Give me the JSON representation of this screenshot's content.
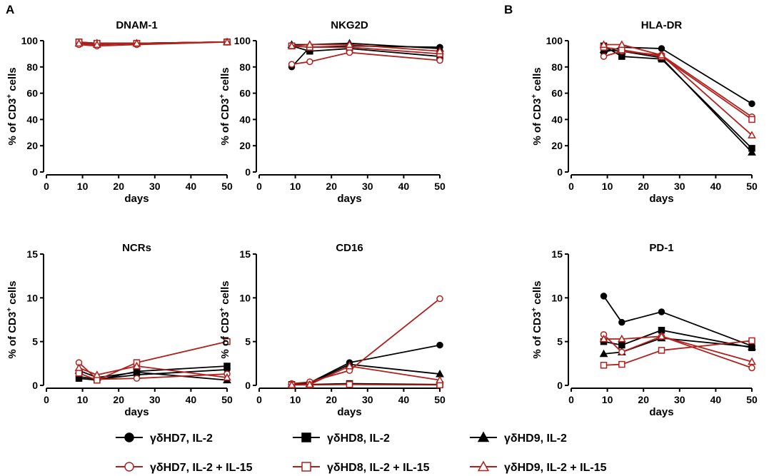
{
  "panel_letters": [
    "A",
    "B"
  ],
  "axes": {
    "xlabel": "days",
    "ylabel_prefix": "% of CD3",
    "ylabel_sup": "+",
    "ylabel_suffix": " cells",
    "x_ticks": [
      0,
      10,
      20,
      30,
      40,
      50
    ]
  },
  "colors": {
    "black": "#000000",
    "red": "#b0201c"
  },
  "legend": [
    {
      "label": "γδHD7, IL-2",
      "color": "#000000",
      "marker": "circle",
      "filled": true
    },
    {
      "label": "γδHD8, IL-2",
      "color": "#000000",
      "marker": "square",
      "filled": true
    },
    {
      "label": "γδHD9, IL-2",
      "color": "#000000",
      "marker": "triangle",
      "filled": true
    },
    {
      "label": "γδHD7, IL-2 + IL-15",
      "color": "#b0201c",
      "marker": "circle",
      "filled": false
    },
    {
      "label": "γδHD8, IL-2 + IL-15",
      "color": "#b0201c",
      "marker": "square",
      "filled": false
    },
    {
      "label": "γδHD9, IL-2 + IL-15",
      "color": "#b0201c",
      "marker": "triangle",
      "filled": false
    }
  ],
  "chart_data": [
    {
      "type": "line",
      "title": "DNAM-1",
      "xlabel": "days",
      "ylabel": "% of CD3+ cells",
      "xlim": [
        0,
        50
      ],
      "ylim": [
        0,
        100
      ],
      "yticks": [
        0,
        20,
        40,
        60,
        80,
        100
      ],
      "x": [
        9,
        14,
        25,
        50
      ],
      "series": [
        {
          "name": "γδHD7, IL-2",
          "values": [
            98,
            97,
            98,
            99
          ]
        },
        {
          "name": "γδHD8, IL-2",
          "values": [
            99,
            98,
            98,
            99
          ]
        },
        {
          "name": "γδHD9, IL-2",
          "values": [
            98,
            98,
            98,
            99
          ]
        },
        {
          "name": "γδHD7, IL-2 + IL-15",
          "values": [
            97,
            96,
            97,
            99
          ]
        },
        {
          "name": "γδHD8, IL-2 + IL-15",
          "values": [
            99,
            98,
            98,
            99
          ]
        },
        {
          "name": "γδHD9, IL-2 + IL-15",
          "values": [
            98,
            97,
            98,
            99
          ]
        }
      ]
    },
    {
      "type": "line",
      "title": "NKG2D",
      "xlabel": "days",
      "ylabel": "% of CD3+ cells",
      "xlim": [
        0,
        50
      ],
      "ylim": [
        0,
        100
      ],
      "yticks": [
        0,
        20,
        40,
        60,
        80,
        100
      ],
      "x": [
        9,
        14,
        25,
        50
      ],
      "series": [
        {
          "name": "γδHD7, IL-2",
          "values": [
            80,
            95,
            96,
            95
          ]
        },
        {
          "name": "γδHD8, IL-2",
          "values": [
            96,
            92,
            94,
            88
          ]
        },
        {
          "name": "γδHD9, IL-2",
          "values": [
            97,
            97,
            98,
            94
          ]
        },
        {
          "name": "γδHD7, IL-2 + IL-15",
          "values": [
            82,
            84,
            91,
            85
          ]
        },
        {
          "name": "γδHD8, IL-2 + IL-15",
          "values": [
            96,
            95,
            95,
            90
          ]
        },
        {
          "name": "γδHD9, IL-2 + IL-15",
          "values": [
            96,
            97,
            97,
            92
          ]
        }
      ]
    },
    {
      "type": "line",
      "title": "HLA-DR",
      "xlabel": "days",
      "ylabel": "% of CD3+ cells",
      "xlim": [
        0,
        50
      ],
      "ylim": [
        0,
        100
      ],
      "yticks": [
        0,
        20,
        40,
        60,
        80,
        100
      ],
      "x": [
        9,
        14,
        25,
        50
      ],
      "series": [
        {
          "name": "γδHD7, IL-2",
          "values": [
            91,
            95,
            94,
            52
          ]
        },
        {
          "name": "γδHD8, IL-2",
          "values": [
            96,
            88,
            86,
            18
          ]
        },
        {
          "name": "γδHD9, IL-2",
          "values": [
            93,
            92,
            87,
            15
          ]
        },
        {
          "name": "γδHD7, IL-2 + IL-15",
          "values": [
            88,
            92,
            89,
            42
          ]
        },
        {
          "name": "γδHD8, IL-2 + IL-15",
          "values": [
            95,
            93,
            88,
            40
          ]
        },
        {
          "name": "γδHD9, IL-2 + IL-15",
          "values": [
            97,
            97,
            89,
            28
          ]
        }
      ]
    },
    {
      "type": "line",
      "title": "NCRs",
      "xlabel": "days",
      "ylabel": "% of CD3+ cells",
      "xlim": [
        0,
        50
      ],
      "ylim": [
        0,
        15
      ],
      "yticks": [
        0,
        5,
        10,
        15
      ],
      "x": [
        9,
        14,
        25,
        50
      ],
      "series": [
        {
          "name": "γδHD7, IL-2",
          "values": [
            1.0,
            0.7,
            1.2,
            1.8
          ]
        },
        {
          "name": "γδHD8, IL-2",
          "values": [
            0.8,
            0.6,
            1.6,
            2.2
          ]
        },
        {
          "name": "γδHD9, IL-2",
          "values": [
            1.7,
            0.9,
            1.5,
            0.6
          ]
        },
        {
          "name": "γδHD7, IL-2 + IL-15",
          "values": [
            2.6,
            0.7,
            0.8,
            1.3
          ]
        },
        {
          "name": "γδHD8, IL-2 + IL-15",
          "values": [
            1.4,
            0.6,
            2.6,
            5.0
          ]
        },
        {
          "name": "γδHD9, IL-2 + IL-15",
          "values": [
            2.0,
            1.2,
            2.2,
            0.9
          ]
        }
      ]
    },
    {
      "type": "line",
      "title": "CD16",
      "xlabel": "days",
      "ylabel": "% of CD3+ cells",
      "xlim": [
        0,
        50
      ],
      "ylim": [
        0,
        15
      ],
      "yticks": [
        0,
        5,
        10,
        15
      ],
      "x": [
        9,
        14,
        25,
        50
      ],
      "series": [
        {
          "name": "γδHD7, IL-2",
          "values": [
            0.1,
            0.3,
            2.6,
            4.6
          ]
        },
        {
          "name": "γδHD8, IL-2",
          "values": [
            0.1,
            0.1,
            0.2,
            0.1
          ]
        },
        {
          "name": "γδHD9, IL-2",
          "values": [
            0.1,
            0.2,
            2.4,
            1.3
          ]
        },
        {
          "name": "γδHD7, IL-2 + IL-15",
          "values": [
            0.2,
            0.4,
            1.7,
            9.9
          ]
        },
        {
          "name": "γδHD8, IL-2 + IL-15",
          "values": [
            0.05,
            0.05,
            0.1,
            0.05
          ]
        },
        {
          "name": "γδHD9, IL-2 + IL-15",
          "values": [
            0.05,
            0.1,
            2.2,
            0.6
          ]
        }
      ]
    },
    {
      "type": "line",
      "title": "PD-1",
      "xlabel": "days",
      "ylabel": "% of CD3+ cells",
      "xlim": [
        0,
        50
      ],
      "ylim": [
        0,
        15
      ],
      "yticks": [
        0,
        5,
        10,
        15
      ],
      "x": [
        9,
        14,
        25,
        50
      ],
      "series": [
        {
          "name": "γδHD7, IL-2",
          "values": [
            10.2,
            7.2,
            8.4,
            4.5
          ]
        },
        {
          "name": "γδHD8, IL-2",
          "values": [
            5.0,
            4.6,
            6.3,
            4.3
          ]
        },
        {
          "name": "γδHD9, IL-2",
          "values": [
            3.6,
            3.8,
            5.4,
            4.4
          ]
        },
        {
          "name": "γδHD7, IL-2 + IL-15",
          "values": [
            5.8,
            3.8,
            5.6,
            2.0
          ]
        },
        {
          "name": "γδHD8, IL-2 + IL-15",
          "values": [
            2.3,
            2.4,
            4.0,
            5.1
          ]
        },
        {
          "name": "γδHD9, IL-2 + IL-15",
          "values": [
            5.3,
            5.3,
            5.6,
            2.7
          ]
        }
      ]
    }
  ]
}
